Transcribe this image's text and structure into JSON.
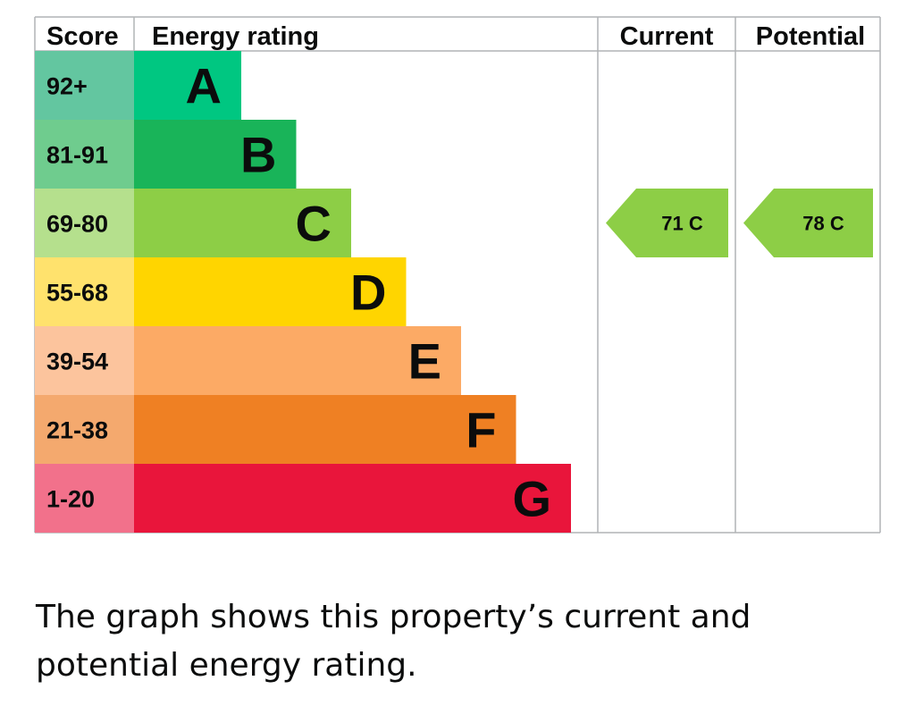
{
  "chart_data": {
    "type": "bar",
    "headers": {
      "score": "Score",
      "rating": "Energy rating",
      "current": "Current",
      "potential": "Potential"
    },
    "bands": [
      {
        "letter": "A",
        "range": "92+",
        "color": "#00c781",
        "score_color": "#63c6a0"
      },
      {
        "letter": "B",
        "range": "81-91",
        "color": "#19b459",
        "score_color": "#6fcc8e"
      },
      {
        "letter": "C",
        "range": "69-80",
        "color": "#8dce46",
        "score_color": "#b5e08d"
      },
      {
        "letter": "D",
        "range": "55-68",
        "color": "#ffd500",
        "score_color": "#ffe26d"
      },
      {
        "letter": "E",
        "range": "39-54",
        "color": "#fcaa65",
        "score_color": "#fcc49d"
      },
      {
        "letter": "F",
        "range": "21-38",
        "color": "#ef8023",
        "score_color": "#f4a96e"
      },
      {
        "letter": "G",
        "range": "1-20",
        "color": "#e9153b",
        "score_color": "#f2718b"
      }
    ],
    "current": {
      "score": 71,
      "band": "C",
      "label": "71  C"
    },
    "potential": {
      "score": 78,
      "band": "C",
      "label": "78  C"
    }
  },
  "caption": "The graph shows this property’s current and potential energy rating."
}
